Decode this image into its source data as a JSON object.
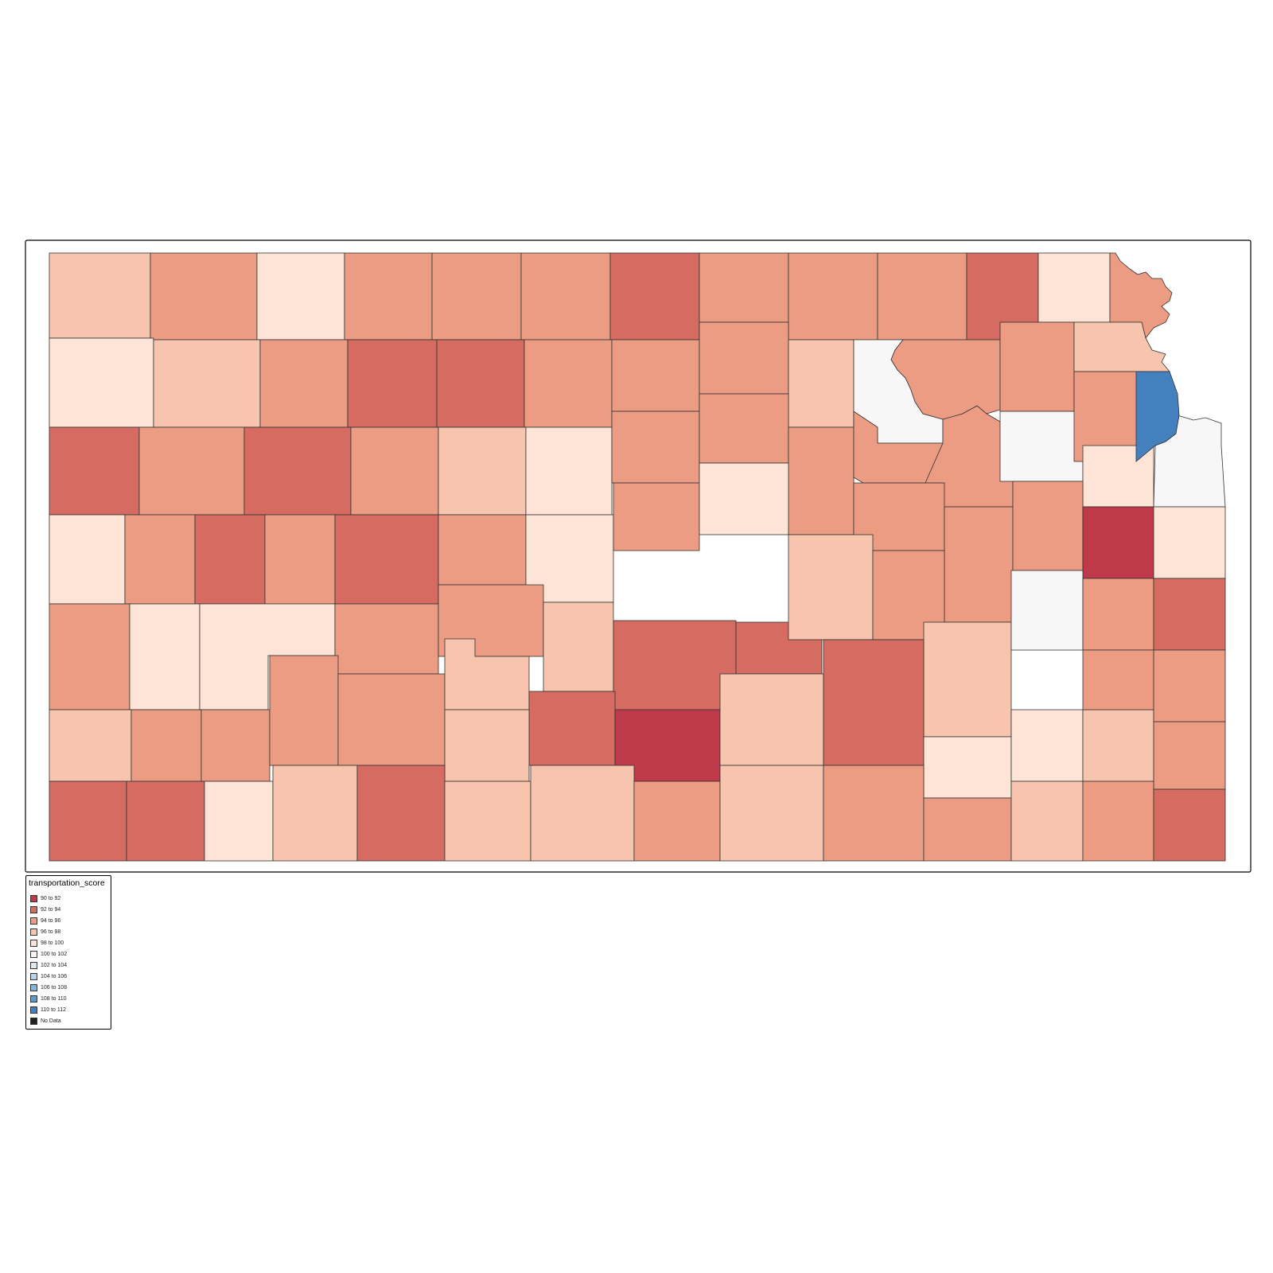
{
  "map": {
    "variable": "transportation_score",
    "palette": {
      "c0": "#be3a4a",
      "c1": "#d56b61",
      "c2": "#eb9c82",
      "c3": "#f7c4ad",
      "c4": "#fde4d7",
      "c5": "#f7f7f7",
      "c10": "#4480bd",
      "nodata": "#222222"
    },
    "counties": [
      {
        "cls": "c3"
      },
      {
        "cls": "c2"
      },
      {
        "cls": "c4"
      },
      {
        "cls": "c2"
      },
      {
        "cls": "c2"
      },
      {
        "cls": "c2"
      },
      {
        "cls": "c1"
      },
      {
        "cls": "c2"
      },
      {
        "cls": "c2"
      },
      {
        "cls": "c2"
      },
      {
        "cls": "c1"
      },
      {
        "cls": "c4"
      },
      {
        "cls": "c2"
      },
      {
        "cls": "c4"
      },
      {
        "cls": "c3"
      },
      {
        "cls": "c2"
      },
      {
        "cls": "c1"
      },
      {
        "cls": "c1"
      },
      {
        "cls": "c2"
      },
      {
        "cls": "c2"
      },
      {
        "cls": "c2"
      },
      {
        "cls": "c3"
      },
      {
        "cls": "c5"
      },
      {
        "cls": "c2"
      },
      {
        "cls": "c2"
      },
      {
        "cls": "c3"
      },
      {
        "cls": "c1"
      },
      {
        "cls": "c2"
      },
      {
        "cls": "c1"
      },
      {
        "cls": "c2"
      },
      {
        "cls": "c3"
      },
      {
        "cls": "c4"
      },
      {
        "cls": "c2"
      },
      {
        "cls": "c2"
      },
      {
        "cls": "c2"
      },
      {
        "cls": "c2"
      },
      {
        "cls": "c2"
      },
      {
        "cls": "c5"
      },
      {
        "cls": "c2"
      },
      {
        "cls": "c4"
      },
      {
        "cls": "c5"
      },
      {
        "cls": "c10"
      },
      {
        "cls": "c4"
      },
      {
        "cls": "c2"
      },
      {
        "cls": "c1"
      },
      {
        "cls": "c2"
      },
      {
        "cls": "c1"
      },
      {
        "cls": "c2"
      },
      {
        "cls": "c4"
      },
      {
        "cls": "c2"
      },
      {
        "cls": "c4"
      },
      {
        "cls": "c2"
      },
      {
        "cls": "c2"
      },
      {
        "cls": "c2"
      },
      {
        "cls": "c0"
      },
      {
        "cls": "c4"
      },
      {
        "cls": "c2"
      },
      {
        "cls": "c4"
      },
      {
        "cls": "c4"
      },
      {
        "cls": "c2"
      },
      {
        "cls": "c2"
      },
      {
        "cls": "c3"
      },
      {
        "cls": "c1"
      },
      {
        "cls": "c1"
      },
      {
        "cls": "c3"
      },
      {
        "cls": "c2"
      },
      {
        "cls": "c3"
      },
      {
        "cls": "c5"
      },
      {
        "cls": "c2"
      },
      {
        "cls": "c1"
      },
      {
        "cls": "c3"
      },
      {
        "cls": "c2"
      },
      {
        "cls": "c2"
      },
      {
        "cls": "c2"
      },
      {
        "cls": "c2"
      },
      {
        "cls": "c3"
      },
      {
        "cls": "c1"
      },
      {
        "cls": "c0"
      },
      {
        "cls": "c3"
      },
      {
        "cls": "c1"
      },
      {
        "cls": "c4"
      },
      {
        "cls": "c4"
      },
      {
        "cls": "c3"
      },
      {
        "cls": "c2"
      },
      {
        "cls": "c3"
      },
      {
        "cls": "c2"
      },
      {
        "cls": "c2"
      },
      {
        "cls": "c1"
      },
      {
        "cls": "c1"
      },
      {
        "cls": "c4"
      },
      {
        "cls": "c3"
      },
      {
        "cls": "c1"
      },
      {
        "cls": "c3"
      },
      {
        "cls": "c3"
      },
      {
        "cls": "c2"
      },
      {
        "cls": "c3"
      },
      {
        "cls": "c2"
      },
      {
        "cls": "c2"
      },
      {
        "cls": "c3"
      },
      {
        "cls": "c2"
      },
      {
        "cls": "c1"
      },
      {
        "cls": "c1"
      },
      {
        "cls": "c1"
      },
      {
        "cls": "c2"
      },
      {
        "cls": "c4"
      },
      {
        "cls": "c4"
      },
      {
        "cls": "c1"
      },
      {
        "cls": "c4"
      },
      {
        "cls": "c2"
      },
      {
        "cls": "c3"
      }
    ]
  },
  "legend": {
    "title": "transportation_score",
    "items": [
      {
        "label": "90 to 92",
        "color": "#be3a4a"
      },
      {
        "label": "92 to 94",
        "color": "#d56b61"
      },
      {
        "label": "94 to 96",
        "color": "#eb9c82"
      },
      {
        "label": "96 to 98",
        "color": "#f7c4ad"
      },
      {
        "label": "98 to 100",
        "color": "#fde4d7"
      },
      {
        "label": "100 to 102",
        "color": "#f7f7f7"
      },
      {
        "label": "102 to 104",
        "color": "#dae9f2"
      },
      {
        "label": "104 to 106",
        "color": "#b5d3e8"
      },
      {
        "label": "106 to 108",
        "color": "#82b6da"
      },
      {
        "label": "108 to 110",
        "color": "#5e9bcc"
      },
      {
        "label": "110 to 112",
        "color": "#4480bd"
      },
      {
        "label": "No Data",
        "color": "#222222"
      }
    ]
  }
}
